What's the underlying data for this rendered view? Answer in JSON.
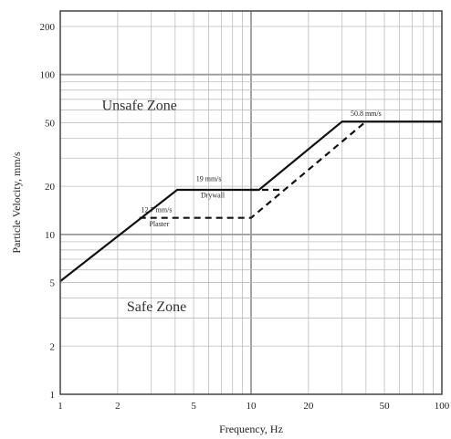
{
  "chart_data": {
    "type": "line",
    "xlabel": "Frequency, Hz",
    "ylabel": "Particle Velocity, mm/s",
    "x_scale": "log",
    "y_scale": "log",
    "xlim": [
      1,
      100
    ],
    "ylim": [
      1,
      250
    ],
    "grid": true,
    "x_tick_labels": [
      "1",
      "2",
      "5",
      "10",
      "20",
      "50",
      "100"
    ],
    "x_tick_values": [
      1,
      2,
      5,
      10,
      20,
      50,
      100
    ],
    "y_tick_labels": [
      "1",
      "2",
      "5",
      "10",
      "20",
      "50",
      "100",
      "200"
    ],
    "y_tick_values": [
      1,
      2,
      5,
      10,
      20,
      50,
      100,
      200
    ],
    "series": [
      {
        "style": "solid",
        "color": "#111111",
        "points": [
          [
            1,
            5.1
          ],
          [
            4.1,
            19
          ],
          [
            11,
            19
          ],
          [
            30,
            50.8
          ],
          [
            100,
            50.8
          ]
        ]
      },
      {
        "style": "dashed",
        "color": "#111111",
        "points": [
          [
            2.6,
            12.7
          ],
          [
            10,
            12.7
          ],
          [
            40,
            50.8
          ]
        ]
      },
      {
        "style": "dashed",
        "color": "#111111",
        "points": [
          [
            10,
            19
          ],
          [
            15,
            19
          ]
        ]
      }
    ],
    "annotations": [
      {
        "text": "Unsafe Zone",
        "x": 2.6,
        "y": 60,
        "kind": "zone"
      },
      {
        "text": "Safe Zone",
        "x": 3.2,
        "y": 3.3,
        "kind": "zone"
      },
      {
        "text": "19 mm/s",
        "x": 6.0,
        "y": 21.5,
        "kind": "label"
      },
      {
        "text": "Drywall",
        "x": 6.3,
        "y": 17.0,
        "kind": "label"
      },
      {
        "text": "12.7 mm/s",
        "x": 3.2,
        "y": 13.8,
        "kind": "label"
      },
      {
        "text": "Plaster",
        "x": 3.3,
        "y": 11.2,
        "kind": "label"
      },
      {
        "text": "50.8 mm/s",
        "x": 40,
        "y": 55,
        "kind": "label"
      }
    ]
  }
}
